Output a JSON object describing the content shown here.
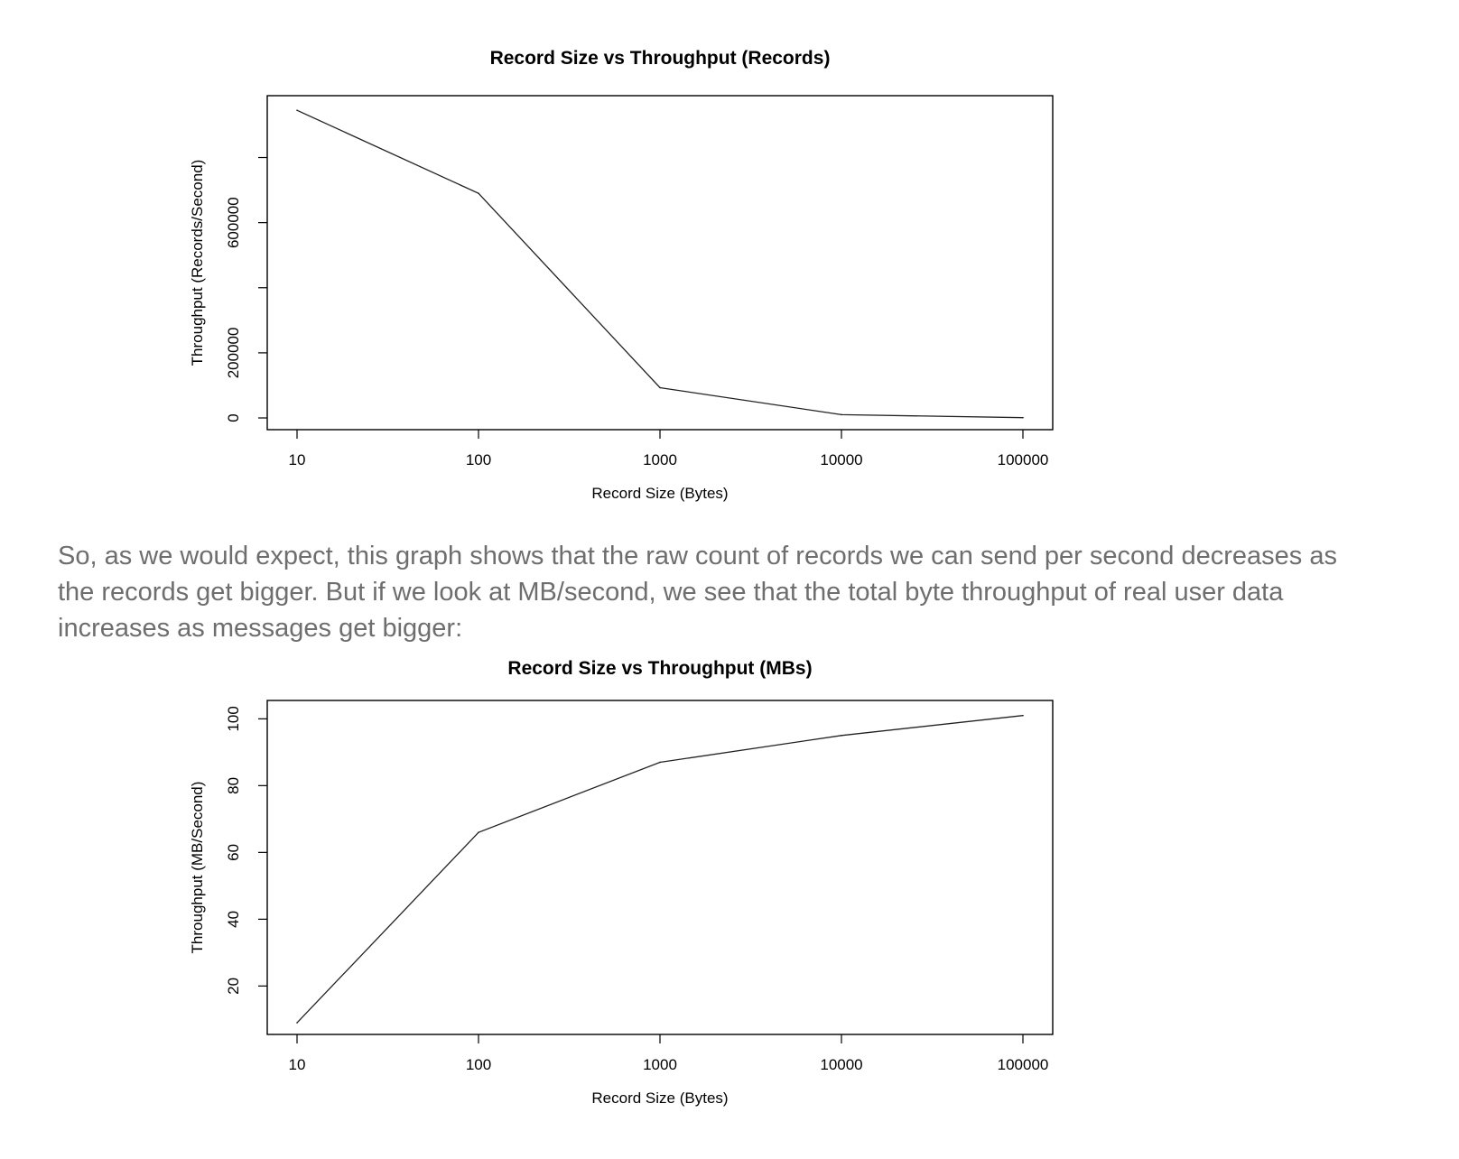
{
  "paragraph": {
    "text": "So, as we would expect, this graph shows that the raw count of records we can send per second decreases as the records get bigger. But if we look at MB/second, we see that the total byte throughput of real user data increases as messages get bigger:"
  },
  "chart_data": [
    {
      "type": "line",
      "title": "Record Size vs Throughput (Records)",
      "xlabel": "Record Size (Bytes)",
      "ylabel": "Throughput (Records/Second)",
      "x": [
        10,
        100,
        1000,
        10000,
        100000
      ],
      "x_tick_labels": [
        "10",
        "100",
        "1000",
        "10000",
        "100000"
      ],
      "x_scale": "log",
      "y_ticks": [
        0,
        200000,
        400000,
        600000,
        800000
      ],
      "y_tick_labels": [
        "0",
        "200000",
        "",
        "600000",
        ""
      ],
      "ylim": [
        -36000,
        990000
      ],
      "series": [
        {
          "values": [
            945000,
            690000,
            93000,
            10000,
            1000
          ]
        }
      ],
      "grid": false,
      "color": "#222222"
    },
    {
      "type": "line",
      "title": "Record Size vs Throughput (MBs)",
      "xlabel": "Record Size (Bytes)",
      "ylabel": "Throughput (MB/Second)",
      "x": [
        10,
        100,
        1000,
        10000,
        100000
      ],
      "x_tick_labels": [
        "10",
        "100",
        "1000",
        "10000",
        "100000"
      ],
      "x_scale": "log",
      "y_ticks": [
        20,
        40,
        60,
        80,
        100
      ],
      "y_tick_labels": [
        "20",
        "40",
        "60",
        "80",
        "100"
      ],
      "ylim": [
        5.5,
        105.5
      ],
      "series": [
        {
          "values": [
            9,
            66,
            87,
            95,
            101
          ]
        }
      ],
      "grid": false,
      "color": "#222222"
    }
  ]
}
